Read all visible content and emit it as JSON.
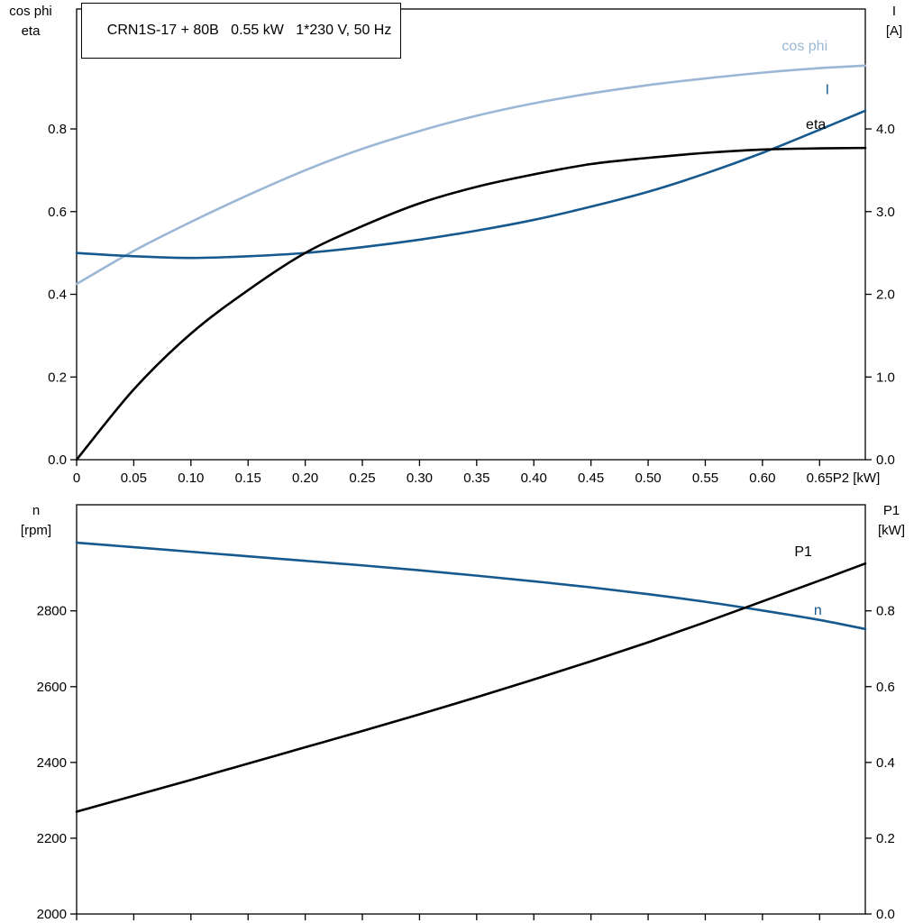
{
  "colors": {
    "black": "#000000",
    "dark_blue": "#16598e",
    "light_blue": "#9ab7d5",
    "axis": "#000000"
  },
  "chart_data": [
    {
      "type": "line",
      "name": "motor-electrical-chart",
      "title": "CRN1S-17 + 80B   0.55 kW   1*230 V, 50 Hz",
      "xlabel": "P2 [kW]",
      "xlim": [
        0,
        0.69
      ],
      "x": [
        0,
        0.05,
        0.1,
        0.15,
        0.2,
        0.25,
        0.3,
        0.35,
        0.4,
        0.45,
        0.5,
        0.55,
        0.6,
        0.65,
        0.69
      ],
      "xticks": {
        "values": [
          0,
          0.05,
          0.1,
          0.15,
          0.2,
          0.25,
          0.3,
          0.35,
          0.4,
          0.45,
          0.5,
          0.55,
          0.6,
          0.65
        ],
        "labels": [
          "0",
          "0.05",
          "0.10",
          "0.15",
          "0.20",
          "0.25",
          "0.30",
          "0.35",
          "0.40",
          "0.45",
          "0.50",
          "0.55",
          "0.60",
          "0.65"
        ]
      },
      "left_axis": {
        "title1": "cos phi",
        "title2": "eta",
        "lim": [
          0,
          1.09
        ],
        "ticks": {
          "values": [
            0.0,
            0.2,
            0.4,
            0.6,
            0.8
          ],
          "labels": [
            "0.0",
            "0.2",
            "0.4",
            "0.6",
            "0.8"
          ]
        }
      },
      "right_axis": {
        "title1": "I",
        "title2": "[A]",
        "lim": [
          0,
          5.45
        ],
        "ticks": {
          "values": [
            0.0,
            1.0,
            2.0,
            3.0,
            4.0
          ],
          "labels": [
            "0.0",
            "1.0",
            "2.0",
            "3.0",
            "4.0"
          ]
        }
      },
      "series": [
        {
          "name": "cos phi",
          "axis": "left",
          "color": "light_blue",
          "label": "cos phi",
          "label_pos": [
            0.617,
            0.99
          ],
          "values": [
            0.425,
            0.505,
            0.575,
            0.64,
            0.7,
            0.752,
            0.795,
            0.832,
            0.862,
            0.886,
            0.906,
            0.922,
            0.936,
            0.947,
            0.953
          ]
        },
        {
          "name": "I",
          "axis": "right",
          "color": "dark_blue",
          "label": "I",
          "label_pos": [
            0.655,
            4.42
          ],
          "values": [
            2.5,
            2.46,
            2.44,
            2.46,
            2.5,
            2.57,
            2.66,
            2.77,
            2.9,
            3.06,
            3.24,
            3.46,
            3.71,
            3.99,
            4.22
          ]
        },
        {
          "name": "eta",
          "axis": "left",
          "color": "black",
          "label": "eta",
          "label_pos": [
            0.638,
            0.8
          ],
          "values": [
            0.0,
            0.17,
            0.305,
            0.41,
            0.5,
            0.565,
            0.62,
            0.66,
            0.69,
            0.715,
            0.73,
            0.742,
            0.75,
            0.753,
            0.754
          ]
        }
      ]
    },
    {
      "type": "line",
      "name": "speed-power-chart",
      "title": "",
      "xlabel": "",
      "xlim": [
        0,
        0.69
      ],
      "x": [
        0,
        0.05,
        0.1,
        0.15,
        0.2,
        0.25,
        0.3,
        0.35,
        0.4,
        0.45,
        0.5,
        0.55,
        0.6,
        0.65,
        0.69
      ],
      "xticks": {
        "values": [
          0,
          0.05,
          0.1,
          0.15,
          0.2,
          0.25,
          0.3,
          0.35,
          0.4,
          0.45,
          0.5,
          0.55,
          0.6,
          0.65
        ],
        "labels": []
      },
      "left_axis": {
        "title1": "n",
        "title2": "[rpm]",
        "lim": [
          2000,
          3080
        ],
        "ticks": {
          "values": [
            2000,
            2200,
            2400,
            2600,
            2800
          ],
          "labels": [
            "2000",
            "2200",
            "2400",
            "2600",
            "2800"
          ]
        }
      },
      "right_axis": {
        "title1": "P1",
        "title2": "[kW]",
        "lim": [
          0,
          1.08
        ],
        "ticks": {
          "values": [
            0.0,
            0.2,
            0.4,
            0.6,
            0.8
          ],
          "labels": [
            "0.0",
            "0.2",
            "0.4",
            "0.6",
            "0.8"
          ]
        }
      },
      "series": [
        {
          "name": "n",
          "axis": "left",
          "color": "dark_blue",
          "label": "n",
          "label_pos": [
            0.645,
            2790
          ],
          "values": [
            2980,
            2968,
            2956,
            2944,
            2932,
            2920,
            2907,
            2893,
            2878,
            2862,
            2844,
            2824,
            2801,
            2776,
            2752
          ]
        },
        {
          "name": "P1",
          "axis": "right",
          "color": "black",
          "label": "P1",
          "label_pos": [
            0.628,
            0.945
          ],
          "values": [
            0.27,
            0.312,
            0.354,
            0.397,
            0.44,
            0.483,
            0.527,
            0.572,
            0.619,
            0.667,
            0.717,
            0.77,
            0.825,
            0.88,
            0.925
          ]
        }
      ]
    }
  ]
}
